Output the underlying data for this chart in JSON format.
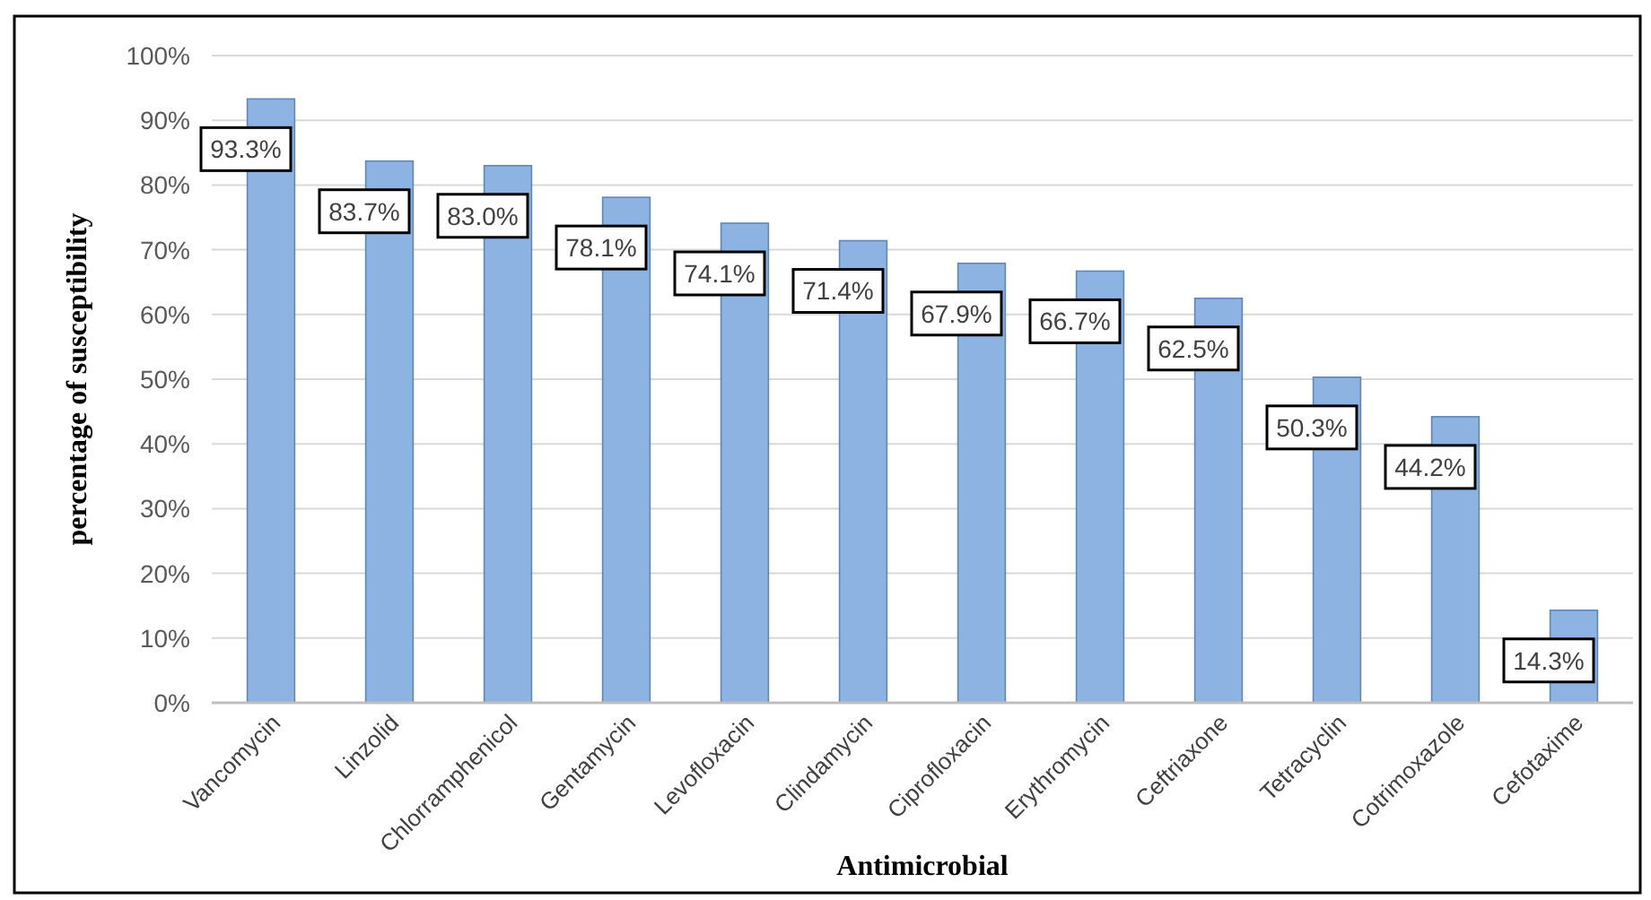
{
  "chart_data": {
    "type": "bar",
    "xlabel": "Antimicrobial",
    "ylabel": "percentage of susceptibility",
    "categories": [
      "Vancomycin",
      "Linzolid",
      "Chlorramphenicol",
      "Gentamycin",
      "Levofloxacin",
      "Clindamycin",
      "Ciprofloxacin",
      "Erythromycin",
      "Ceftriaxone",
      "Tetracyclin",
      "Cotrimoxazole",
      "Cefotaxime"
    ],
    "values": [
      93.3,
      83.7,
      83.0,
      78.1,
      74.1,
      71.4,
      67.9,
      66.7,
      62.5,
      50.3,
      44.2,
      14.3
    ],
    "value_labels": [
      "93.3%",
      "83.7%",
      "83.0%",
      "78.1%",
      "74.1%",
      "71.4%",
      "67.9%",
      "66.7%",
      "62.5%",
      "50.3%",
      "44.2%",
      "14.3%"
    ],
    "color": "#8db3e2",
    "ylim": [
      0,
      100
    ],
    "yticks": [
      {
        "value": 0,
        "label": "0%"
      },
      {
        "value": 10,
        "label": "10%"
      },
      {
        "value": 20,
        "label": "20%"
      },
      {
        "value": 30,
        "label": "30%"
      },
      {
        "value": 40,
        "label": "40%"
      },
      {
        "value": 50,
        "label": "50%"
      },
      {
        "value": 60,
        "label": "60%"
      },
      {
        "value": 70,
        "label": "70%"
      },
      {
        "value": 80,
        "label": "80%"
      },
      {
        "value": 90,
        "label": "90%"
      },
      {
        "value": 100,
        "label": "100%"
      }
    ],
    "grid": "y"
  }
}
